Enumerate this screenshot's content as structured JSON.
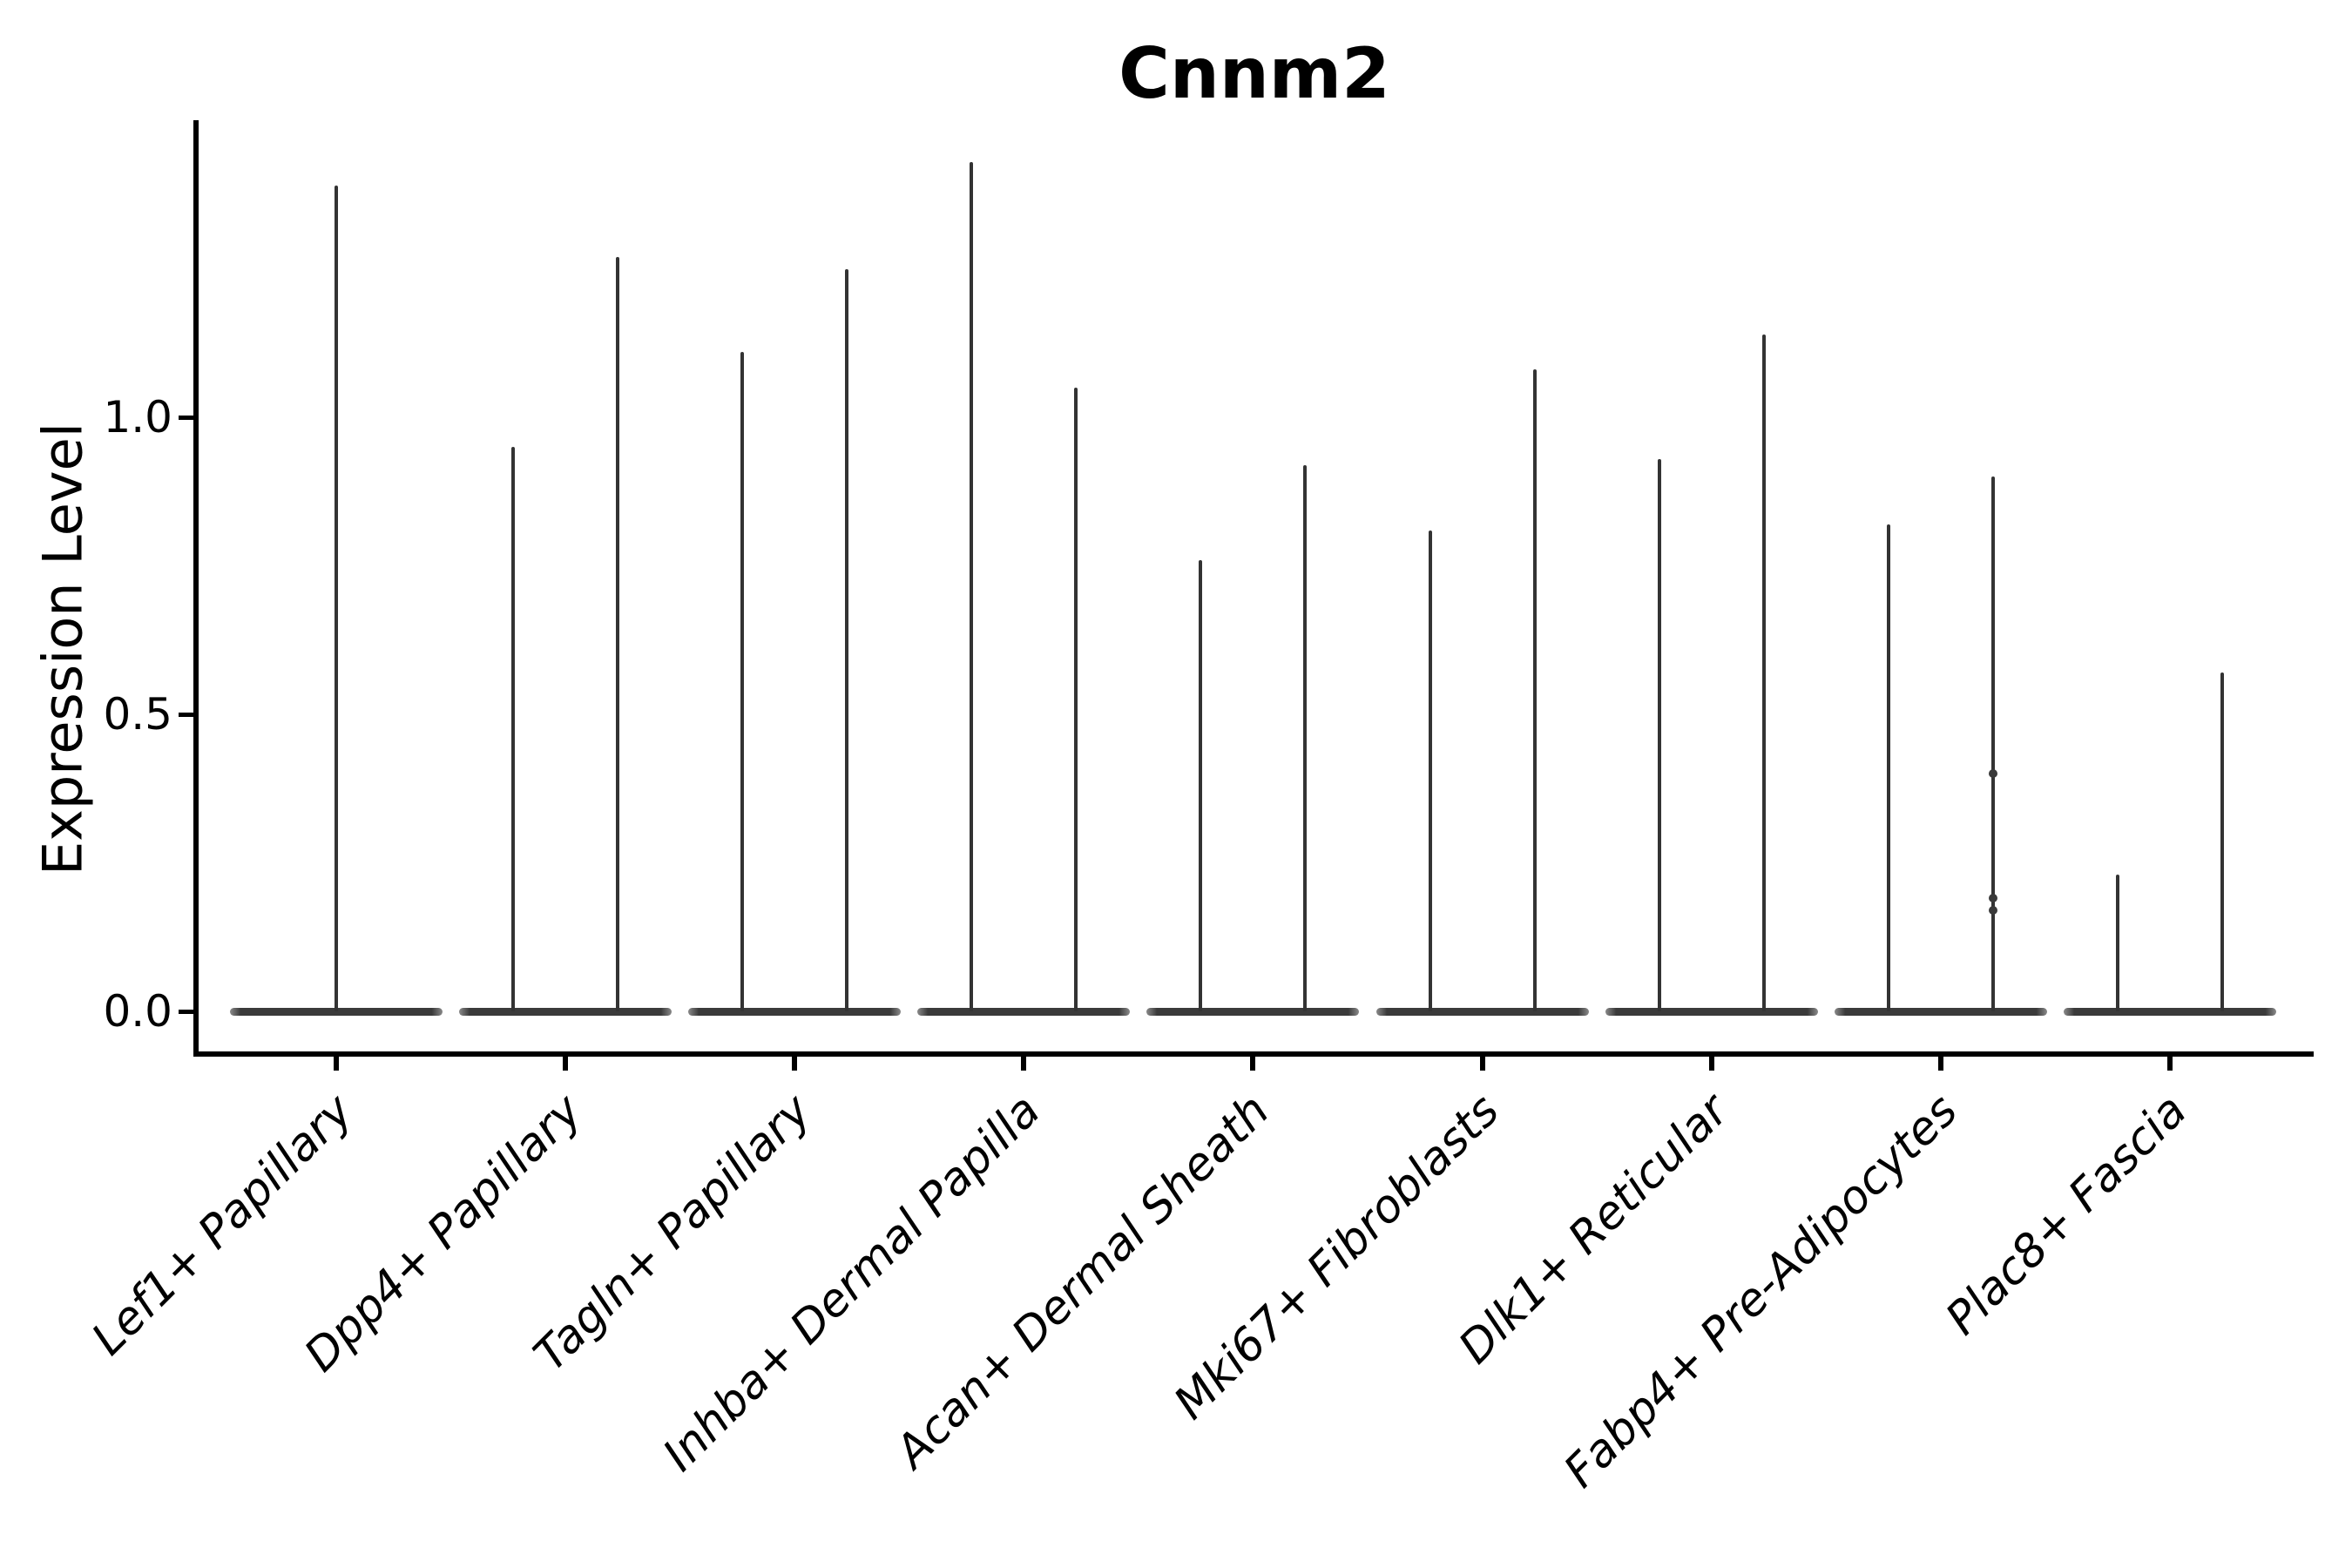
{
  "title": "Cnnm2",
  "y_axis": {
    "label": "Expression Level",
    "tick_labels": [
      "0.0",
      "0.5",
      "1.0"
    ]
  },
  "x_axis": {
    "tick_labels": [
      "Lef1+ Papillary",
      "Dpp4+ Papillary",
      "Tagln+ Papillary",
      "Inhba+ Dermal Papilla",
      "Acan+ Dermal Sheath",
      "Mki67+ Fibroblasts",
      "Dlk1+ Reticular",
      "Fabp4+ Pre-Adipocytes",
      "Plac8+ Fascia"
    ]
  },
  "colors": {
    "violin_body": "#3a3a3a",
    "spike_line": "#333333",
    "axis": "#000000",
    "text": "#000000",
    "background": "#ffffff"
  },
  "chart_data": {
    "type": "violin",
    "title": "Cnnm2",
    "xlabel": "",
    "ylabel": "Expression Level",
    "ylim": [
      0,
      1.5
    ],
    "yticks": [
      0.0,
      0.5,
      1.0
    ],
    "ytick_labels": [
      "0.0",
      "0.5",
      "1.0"
    ],
    "grid": false,
    "legend": "none",
    "categories": [
      "Lef1+ Papillary",
      "Dpp4+ Papillary",
      "Tagln+ Papillary",
      "Inhba+ Dermal Papilla",
      "Acan+ Dermal Sheath",
      "Mki67+ Fibroblasts",
      "Dlk1+ Reticular",
      "Fabp4+ Pre-Adipocytes",
      "Plac8+ Fascia"
    ],
    "violins": [
      {
        "category": "Lef1+ Papillary",
        "baseline_value": 0,
        "spike_maxima": [
          1.39
        ],
        "points": []
      },
      {
        "category": "Dpp4+ Papillary",
        "baseline_value": 0,
        "spike_maxima": [
          0.95,
          1.27
        ],
        "points": []
      },
      {
        "category": "Tagln+ Papillary",
        "baseline_value": 0,
        "spike_maxima": [
          1.11,
          1.25
        ],
        "points": []
      },
      {
        "category": "Inhba+ Dermal Papilla",
        "baseline_value": 0,
        "spike_maxima": [
          1.43,
          1.05
        ],
        "points": []
      },
      {
        "category": "Acan+ Dermal Sheath",
        "baseline_value": 0,
        "spike_maxima": [
          0.76,
          0.92
        ],
        "points": []
      },
      {
        "category": "Mki67+ Fibroblasts",
        "baseline_value": 0,
        "spike_maxima": [
          0.81,
          1.08
        ],
        "points": []
      },
      {
        "category": "Dlk1+ Reticular",
        "baseline_value": 0,
        "spike_maxima": [
          0.93,
          1.14
        ],
        "points": []
      },
      {
        "category": "Fabp4+ Pre-Adipocytes",
        "baseline_value": 0,
        "spike_maxima": [
          0.82,
          0.9
        ],
        "points": [
          {
            "spike": 2,
            "values": [
              0.4,
              0.19,
              0.17
            ]
          }
        ]
      },
      {
        "category": "Plac8+ Fascia",
        "baseline_value": 0,
        "spike_maxima": [
          0.23,
          0.57
        ],
        "points": []
      }
    ]
  }
}
